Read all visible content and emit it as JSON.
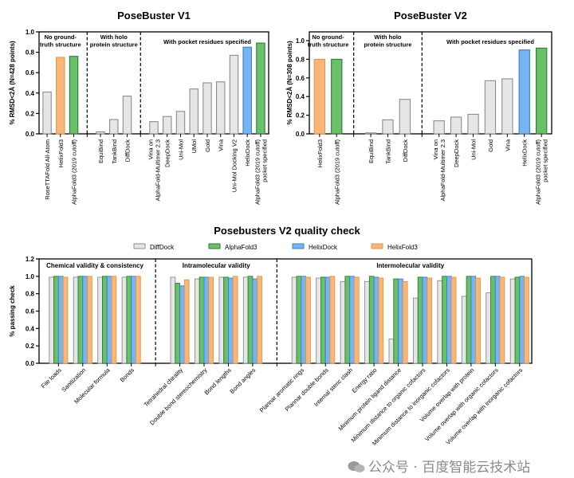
{
  "colors": {
    "gray": "#e6e6e6",
    "gray_stroke": "#8c8c8c",
    "orange": "#f7b77a",
    "orange_stroke": "#e6954a",
    "green": "#6abf6a",
    "green_stroke": "#2e7d32",
    "blue": "#76b5f2",
    "blue_stroke": "#3b7fc4"
  },
  "watermark": "公众号 · 百度智能云技术站",
  "chart_data": [
    {
      "type": "bar",
      "title": "PoseBuster V1",
      "ylabel": "% RMSD<2Å (N=428 points)",
      "xlabel": "",
      "ylim": [
        0,
        1.0
      ],
      "yticks": [
        "0.0",
        "0.2",
        "0.4",
        "0.6",
        "0.8",
        "1.0"
      ],
      "groups": [
        {
          "label": [
            "No ground-",
            "truth structure"
          ],
          "count": 3
        },
        {
          "label": [
            "With holo",
            "protein structure"
          ],
          "count": 3
        },
        {
          "label": [
            "With pocket residues specified"
          ],
          "count": 9
        }
      ],
      "categories": [
        [
          "RoseTTAFold All-Atom"
        ],
        [
          "HelixFold3"
        ],
        [
          "AlphaFold3 (2019 cutoff)"
        ],
        [
          "EquiBind"
        ],
        [
          "TankBind"
        ],
        [
          "DiffDock"
        ],
        [
          "Vina on",
          "AlphaFold-Multimer 2.3"
        ],
        [
          "DeepDock"
        ],
        [
          "Uni-Mol"
        ],
        [
          "UMol"
        ],
        [
          "Gold"
        ],
        [
          "Vina"
        ],
        [
          "Uni-Mol Docking V2"
        ],
        [
          "HelixDock"
        ],
        [
          "AlphaFold3 (2019 cutoff)",
          "pocket specified"
        ]
      ],
      "values": [
        0.41,
        0.75,
        0.76,
        0.02,
        0.14,
        0.37,
        0.12,
        0.17,
        0.22,
        0.44,
        0.5,
        0.51,
        0.77,
        0.85,
        0.89
      ],
      "colors": [
        "gray",
        "orange",
        "green",
        "gray",
        "gray",
        "gray",
        "gray",
        "gray",
        "gray",
        "gray",
        "gray",
        "gray",
        "gray",
        "blue",
        "green"
      ]
    },
    {
      "type": "bar",
      "title": "PoseBuster V2",
      "ylabel": "% RMSD<2Å (N=308 points)",
      "xlabel": "",
      "ylim": [
        0,
        1.0
      ],
      "yticks": [
        "0.0",
        "0.2",
        "0.4",
        "0.6",
        "0.8",
        "1.0"
      ],
      "groups": [
        {
          "label": [
            "No ground-",
            "truth structure"
          ],
          "count": 2
        },
        {
          "label": [
            "With holo",
            "protein structure"
          ],
          "count": 3
        },
        {
          "label": [
            "With pocket residues specified"
          ],
          "count": 7
        }
      ],
      "categories": [
        [
          "HelixFold3"
        ],
        [
          "AlphaFold3 (2019 cutoff)"
        ],
        [
          "EquiBind"
        ],
        [
          "TankBind"
        ],
        [
          "DiffDock"
        ],
        [
          "Vina on",
          "AlphaFold-Multimer 2.3"
        ],
        [
          "DeepDock"
        ],
        [
          "Uni-Mol"
        ],
        [
          "Gold"
        ],
        [
          "Vina"
        ],
        [
          "HelixDock"
        ],
        [
          "AlphaFold3 (2019 cutoff)",
          "pocket specified"
        ]
      ],
      "values": [
        0.8,
        0.8,
        0.01,
        0.15,
        0.37,
        0.14,
        0.18,
        0.21,
        0.57,
        0.59,
        0.9,
        0.92
      ],
      "colors": [
        "orange",
        "green",
        "gray",
        "gray",
        "gray",
        "gray",
        "gray",
        "gray",
        "gray",
        "gray",
        "blue",
        "green"
      ]
    },
    {
      "type": "bar",
      "title": "Posebusters V2 quality check",
      "ylabel": "% passing check",
      "xlabel": "",
      "ylim": [
        0,
        1.2
      ],
      "yticks": [
        "0.0",
        "0.2",
        "0.4",
        "0.6",
        "0.8",
        "1.0",
        "1.2"
      ],
      "legend_position": "top-center",
      "groups": [
        {
          "label": "Chemical validity & consistency",
          "count": 4
        },
        {
          "label": "Intramolecular validity",
          "count": 4
        },
        {
          "label": "Intermolecular validity",
          "count": 10
        }
      ],
      "categories": [
        "File loads",
        "Sanitization",
        "Molecular formula",
        "Bonds",
        "Tetrahedral chirality",
        "Double bond stereochemistry",
        "Bond lengths",
        "Bond angles",
        "Plannar aromatic rings",
        "Plannar double bonds",
        "Internal steric clash",
        "Energy ratio",
        "Minimum protein ligand distance",
        "Minimum distance to organic cofactors",
        "Minimum distance to inorganic cofactors",
        "Volume overlap with protein",
        "Volume overlap with organic cofactors",
        "Volume overlap with inorganic cofactors"
      ],
      "series": [
        {
          "name": "DiffDock",
          "color": "gray",
          "values": [
            0.99,
            0.99,
            0.99,
            0.99,
            0.99,
            0.97,
            0.99,
            0.99,
            0.99,
            0.98,
            0.94,
            0.94,
            0.28,
            0.75,
            0.95,
            0.77,
            0.81,
            0.97
          ]
        },
        {
          "name": "AlphaFold3",
          "color": "green",
          "values": [
            1.0,
            1.0,
            1.0,
            1.0,
            0.92,
            0.99,
            0.99,
            1.0,
            1.0,
            0.99,
            1.0,
            1.0,
            0.97,
            0.99,
            1.0,
            1.0,
            1.0,
            0.99
          ]
        },
        {
          "name": "HelixDock",
          "color": "blue",
          "values": [
            1.0,
            1.0,
            1.0,
            1.0,
            0.89,
            0.99,
            0.98,
            0.97,
            1.0,
            0.99,
            1.0,
            0.99,
            0.97,
            0.99,
            1.0,
            1.0,
            1.0,
            1.0
          ]
        },
        {
          "name": "HelixFold3",
          "color": "orange",
          "values": [
            0.99,
            1.0,
            1.0,
            1.0,
            0.96,
            0.99,
            1.0,
            1.0,
            0.99,
            1.0,
            0.99,
            0.98,
            0.94,
            0.98,
            0.99,
            0.98,
            0.99,
            0.99
          ]
        }
      ]
    }
  ]
}
